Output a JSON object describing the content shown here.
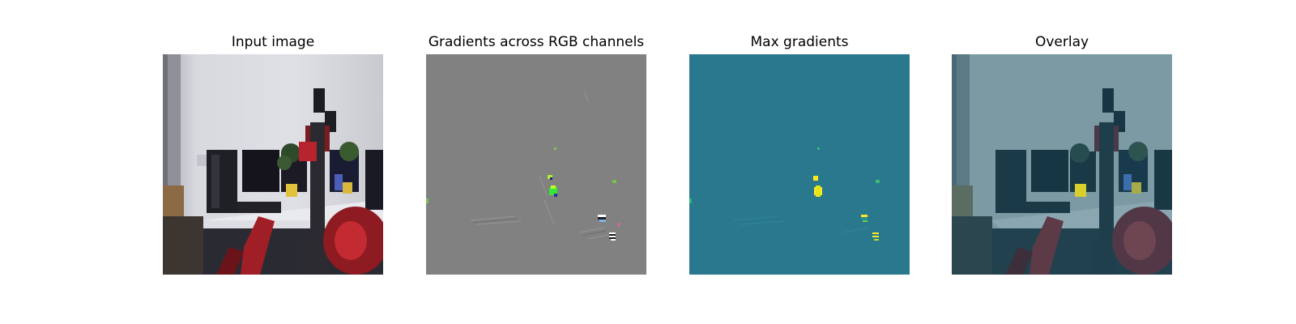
{
  "panels": [
    {
      "title": "Input image"
    },
    {
      "title": "Gradients across RGB channels"
    },
    {
      "title": "Max gradients"
    },
    {
      "title": "Overlay"
    }
  ],
  "colors": {
    "gradient_background": "#818181",
    "max_gradient_background": "#2a788e",
    "gradient_peak": "#fde725",
    "overlay_tint": "#2a788e"
  }
}
